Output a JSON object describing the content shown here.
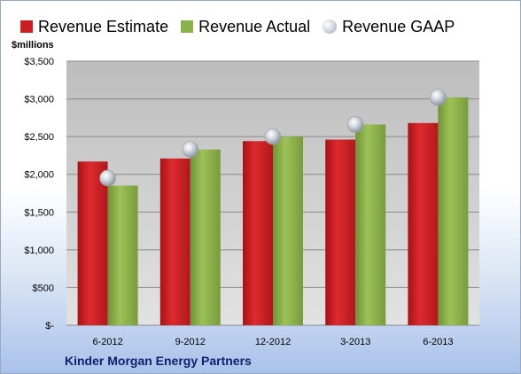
{
  "chart_data": {
    "type": "bar",
    "title": "",
    "unit_label": "$millions",
    "categories": [
      "6-2012",
      "9-2012",
      "12-2012",
      "3-2013",
      "6-2013"
    ],
    "series": [
      {
        "name": "Revenue Estimate",
        "kind": "bar",
        "color": "#cc1f24",
        "values": [
          2170,
          2210,
          2440,
          2460,
          2680
        ]
      },
      {
        "name": "Revenue Actual",
        "kind": "bar",
        "color": "#8db14a",
        "values": [
          1850,
          2330,
          2500,
          2660,
          3020
        ]
      },
      {
        "name": "Revenue GAAP",
        "kind": "point",
        "color": "#b9bec6",
        "values": [
          1950,
          2330,
          2500,
          2660,
          3020
        ]
      }
    ],
    "ylim": [
      0,
      3500
    ],
    "yticks": [
      0,
      500,
      1000,
      1500,
      2000,
      2500,
      3000,
      3500
    ],
    "ytick_labels": [
      "$-",
      "$500",
      "$1,000",
      "$1,500",
      "$2,000",
      "$2,500",
      "$3,000",
      "$3,500"
    ],
    "grid": true,
    "legend": "top",
    "footer": "Kinder Morgan Energy Partners"
  }
}
